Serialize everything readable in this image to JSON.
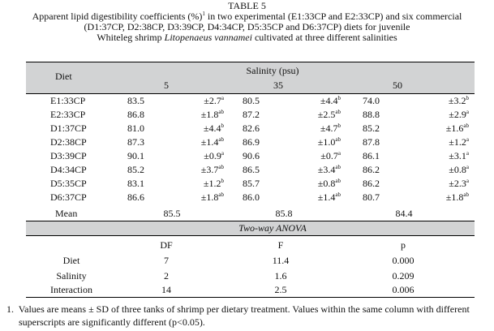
{
  "caption": {
    "table_number": "TABLE 5",
    "line1_a": "Apparent lipid digestibility coefficients (%)",
    "line1_sup": "1",
    "line1_b": " in two experimental (E1:33CP and E2:33CP) and six commercial",
    "line2": "(D1:37CP, D2:38CP, D3:39CP, D4:34CP, D5:35CP and D6:37CP) diets for juvenile",
    "line3_a": "Whiteleg shrimp ",
    "line3_species": "Litopenaeus vannamei",
    "line3_b": " cultivated at three different salinities"
  },
  "header": {
    "diet": "Diet",
    "salinity": "Salinity (psu)",
    "levels": [
      "5",
      "35",
      "50"
    ]
  },
  "rows": [
    {
      "diet": "E1:33CP",
      "cells": [
        {
          "mean": "83.5",
          "sd": "±2.7",
          "sup": "a"
        },
        {
          "mean": "80.5",
          "sd": "±4.4",
          "sup": "b"
        },
        {
          "mean": "74.0",
          "sd": "±3.2",
          "sup": "b"
        }
      ]
    },
    {
      "diet": "E2:33CP",
      "cells": [
        {
          "mean": "86.8",
          "sd": "±1.8",
          "sup": "ab"
        },
        {
          "mean": "87.2",
          "sd": "±2.5",
          "sup": "ab"
        },
        {
          "mean": "88.8",
          "sd": "±2.9",
          "sup": "a"
        }
      ]
    },
    {
      "diet": "D1:37CP",
      "cells": [
        {
          "mean": "81.0",
          "sd": "±4.4",
          "sup": "b"
        },
        {
          "mean": "82.6",
          "sd": "±4.7",
          "sup": "b"
        },
        {
          "mean": "85.2",
          "sd": "±1.6",
          "sup": "ab"
        }
      ]
    },
    {
      "diet": "D2:38CP",
      "cells": [
        {
          "mean": "87.3",
          "sd": "±1.4",
          "sup": "ab"
        },
        {
          "mean": "86.9",
          "sd": "±1.0",
          "sup": "ab"
        },
        {
          "mean": "87.8",
          "sd": "±1.2",
          "sup": "a"
        }
      ]
    },
    {
      "diet": "D3:39CP",
      "cells": [
        {
          "mean": "90.1",
          "sd": "±0.9",
          "sup": "a"
        },
        {
          "mean": "90.6",
          "sd": "±0.7",
          "sup": "a"
        },
        {
          "mean": "86.1",
          "sd": "±3.1",
          "sup": "a"
        }
      ]
    },
    {
      "diet": "D4:34CP",
      "cells": [
        {
          "mean": "85.2",
          "sd": "±3.7",
          "sup": "ab"
        },
        {
          "mean": "86.5",
          "sd": "±3.4",
          "sup": "ab"
        },
        {
          "mean": "86.2",
          "sd": "±0.8",
          "sup": "a"
        }
      ]
    },
    {
      "diet": "D5:35CP",
      "cells": [
        {
          "mean": "83.1",
          "sd": "±1.2",
          "sup": "b"
        },
        {
          "mean": "85.7",
          "sd": "±0.8",
          "sup": "ab"
        },
        {
          "mean": "86.2",
          "sd": "±2.3",
          "sup": "a"
        }
      ]
    },
    {
      "diet": "D6:37CP",
      "cells": [
        {
          "mean": "86.6",
          "sd": "±1.8",
          "sup": "ab"
        },
        {
          "mean": "86.0",
          "sd": "±1.4",
          "sup": "ab"
        },
        {
          "mean": "80.7",
          "sd": "±1.8",
          "sup": "ab"
        }
      ]
    }
  ],
  "mean_row": {
    "label": "Mean",
    "values": [
      "85.5",
      "85.8",
      "84.4"
    ]
  },
  "anova": {
    "title": "Two-way ANOVA",
    "headers": [
      "DF",
      "F",
      "p"
    ],
    "rows": [
      {
        "label": "Diet",
        "df": "7",
        "f": "11.4",
        "p": "0.000"
      },
      {
        "label": "Salinity",
        "df": "2",
        "f": "1.6",
        "p": "0.209"
      },
      {
        "label": "Interaction",
        "df": "14",
        "f": "2.5",
        "p": "0.006"
      }
    ]
  },
  "footnote": {
    "line1": "1.  Values are means ± SD of three tanks of shrimp per dietary treatment. Values within the same column with different",
    "line2": "     superscripts are significantly different (p<0.05)."
  },
  "colors": {
    "header_band": "#d2d3d4",
    "rule": "#000000",
    "text": "#111111"
  }
}
